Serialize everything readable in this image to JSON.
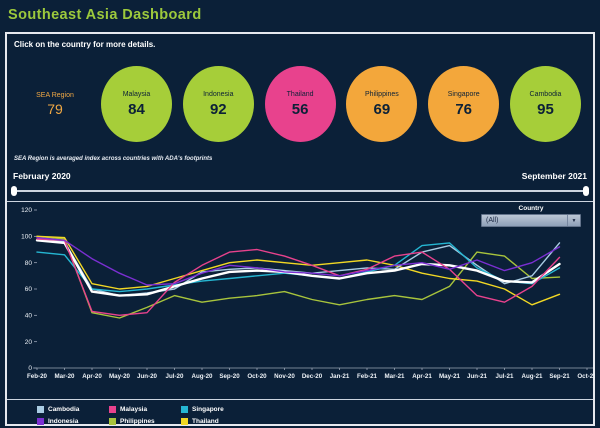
{
  "header": {
    "title": "Southeast Asia Dashboard"
  },
  "instruction": "Click on the country for more details.",
  "scores": {
    "region": {
      "label": "SEA Region",
      "value": "79",
      "text_color": "#f0a844"
    },
    "countries": [
      {
        "label": "Malaysia",
        "value": "84",
        "color": "#a6ce39"
      },
      {
        "label": "Indonesia",
        "value": "92",
        "color": "#a6ce39"
      },
      {
        "label": "Thailand",
        "value": "56",
        "color": "#e8428d"
      },
      {
        "label": "Philippines",
        "value": "69",
        "color": "#f3a73b"
      },
      {
        "label": "Singapore",
        "value": "76",
        "color": "#f3a73b"
      },
      {
        "label": "Cambodia",
        "value": "95",
        "color": "#a6ce39"
      }
    ]
  },
  "footnote": "SEA Region is averaged index across countries with ADA's footprints",
  "slider": {
    "start_label": "February 2020",
    "end_label": "September 2021"
  },
  "filter": {
    "label": "Country",
    "value": "(All)"
  },
  "icons": {
    "dropdown_arrow": "▼"
  },
  "chart_data": {
    "type": "line",
    "title": "",
    "xlabel": "",
    "ylabel": "",
    "ylim": [
      0,
      120
    ],
    "yticks": [
      0,
      20,
      40,
      60,
      80,
      100,
      120
    ],
    "grid": false,
    "legend_position": "bottom-left",
    "x": [
      "Feb-20",
      "Mar-20",
      "Apr-20",
      "May-20",
      "Jun-20",
      "Jul-20",
      "Aug-20",
      "Sep-20",
      "Oct-20",
      "Nov-20",
      "Dec-20",
      "Jan-21",
      "Feb-21",
      "Mar-21",
      "Apr-21",
      "May-21",
      "Jun-21",
      "Jul-21",
      "Aug-21",
      "Sep-21"
    ],
    "x_axis_ticks": [
      "Feb-20",
      "Mar-20",
      "Apr-20",
      "May-20",
      "Jun-20",
      "Jul-20",
      "Aug-20",
      "Sep-20",
      "Oct-20",
      "Nov-20",
      "Dec-20",
      "Jan-21",
      "Feb-21",
      "Mar-21",
      "Apr-21",
      "May-21",
      "Jun-21",
      "Jul-21",
      "Aug-21",
      "Sep-21",
      "Oct-21"
    ],
    "series": [
      {
        "name": "Philippines",
        "color": "#a8c43c",
        "values": [
          100,
          98,
          42,
          38,
          46,
          55,
          50,
          53,
          55,
          58,
          52,
          48,
          52,
          55,
          52,
          62,
          88,
          85,
          68,
          69
        ]
      },
      {
        "name": "Thailand",
        "color": "#f2d824",
        "values": [
          100,
          99,
          64,
          60,
          62,
          68,
          74,
          80,
          82,
          80,
          78,
          80,
          82,
          78,
          72,
          68,
          66,
          60,
          48,
          56
        ]
      },
      {
        "name": "Cambodia",
        "color": "#a9cce3",
        "values": [
          97,
          96,
          60,
          55,
          57,
          60,
          73,
          75,
          76,
          74,
          72,
          74,
          76,
          75,
          88,
          93,
          78,
          64,
          70,
          95
        ]
      },
      {
        "name": "Singapore",
        "color": "#25b6d2",
        "values": [
          88,
          86,
          60,
          58,
          60,
          63,
          66,
          68,
          70,
          72,
          70,
          68,
          73,
          78,
          93,
          95,
          76,
          66,
          64,
          76
        ]
      },
      {
        "name": "SEA Region",
        "color": "#ffffff",
        "width": 2.4,
        "values": [
          97,
          95,
          58,
          55,
          56,
          62,
          68,
          73,
          74,
          73,
          70,
          68,
          72,
          74,
          79,
          78,
          74,
          66,
          65,
          79
        ]
      },
      {
        "name": "Malaysia",
        "color": "#e8428d",
        "values": [
          98,
          97,
          43,
          40,
          42,
          65,
          78,
          88,
          90,
          85,
          78,
          70,
          75,
          85,
          88,
          75,
          55,
          50,
          62,
          84
        ]
      },
      {
        "name": "Indonesia",
        "color": "#7b2fd2",
        "values": [
          99,
          97,
          83,
          72,
          63,
          64,
          72,
          78,
          76,
          73,
          72,
          70,
          74,
          78,
          80,
          75,
          82,
          74,
          80,
          92
        ]
      }
    ]
  },
  "legend": [
    {
      "name": "Cambodia",
      "color": "#a9cce3"
    },
    {
      "name": "Malaysia",
      "color": "#e8428d"
    },
    {
      "name": "Singapore",
      "color": "#25b6d2"
    },
    {
      "name": "Indonesia",
      "color": "#7b2fd2"
    },
    {
      "name": "Philippines",
      "color": "#a8c43c"
    },
    {
      "name": "Thailand",
      "color": "#f2d824"
    }
  ]
}
